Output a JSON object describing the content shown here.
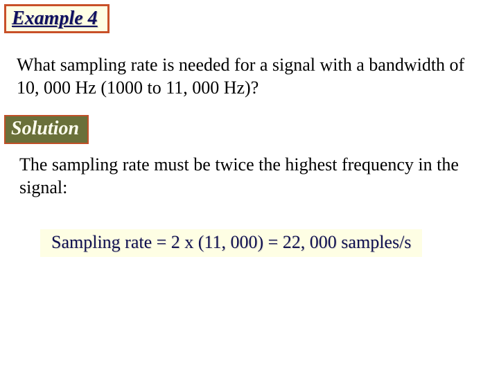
{
  "example": {
    "label": "Example 4",
    "box_bg": "#fefee4",
    "box_border": "#c85028",
    "text_color": "#101060"
  },
  "question": {
    "text": "What sampling rate is needed for a signal with a bandwidth of 10, 000 Hz (1000 to 11, 000 Hz)?",
    "text_color": "#000000"
  },
  "solution": {
    "label": "Solution",
    "box_bg": "#6a703a",
    "box_border": "#c05028",
    "text_color": "#fefeee"
  },
  "answer": {
    "text": "The sampling rate must be twice the highest frequency in the signal:",
    "text_color": "#000000"
  },
  "result": {
    "text": "Sampling rate = 2 x (11, 000) = 22, 000 samples/s",
    "box_bg": "#fefee4",
    "text_color": "#101050"
  }
}
